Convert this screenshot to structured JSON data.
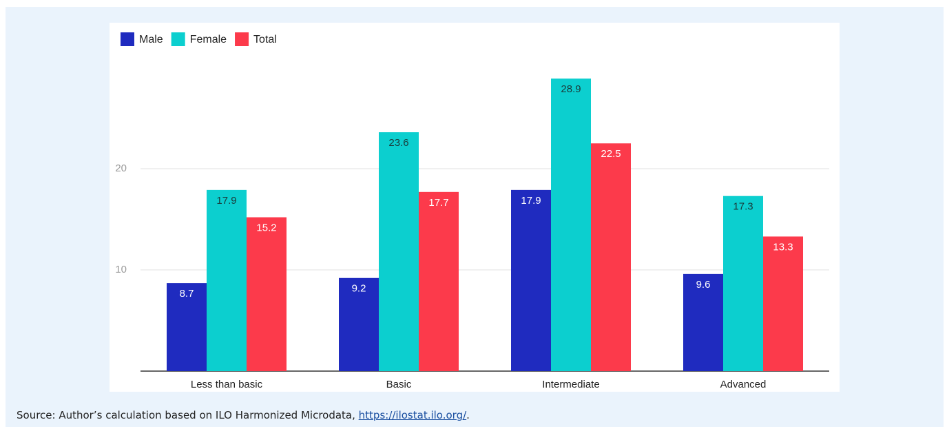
{
  "chart_data": {
    "type": "bar",
    "categories": [
      "Less than basic",
      "Basic",
      "Intermediate",
      "Advanced"
    ],
    "series": [
      {
        "name": "Male",
        "color": "#1f2bbf",
        "values": [
          8.7,
          9.2,
          17.9,
          9.6
        ]
      },
      {
        "name": "Female",
        "color": "#0ccfcf",
        "values": [
          17.9,
          23.6,
          28.9,
          17.3
        ]
      },
      {
        "name": "Total",
        "color": "#fc3a4b",
        "values": [
          15.2,
          17.7,
          22.5,
          13.3
        ]
      }
    ],
    "ylim": [
      0,
      30
    ],
    "yticks": [
      10,
      20
    ],
    "grid": true,
    "legend": "top-left"
  },
  "source": {
    "text": "Source: Author’s calculation based on ILO Harmonized Microdata, ",
    "link": "https://ilostat.ilo.org/",
    "end": "."
  }
}
